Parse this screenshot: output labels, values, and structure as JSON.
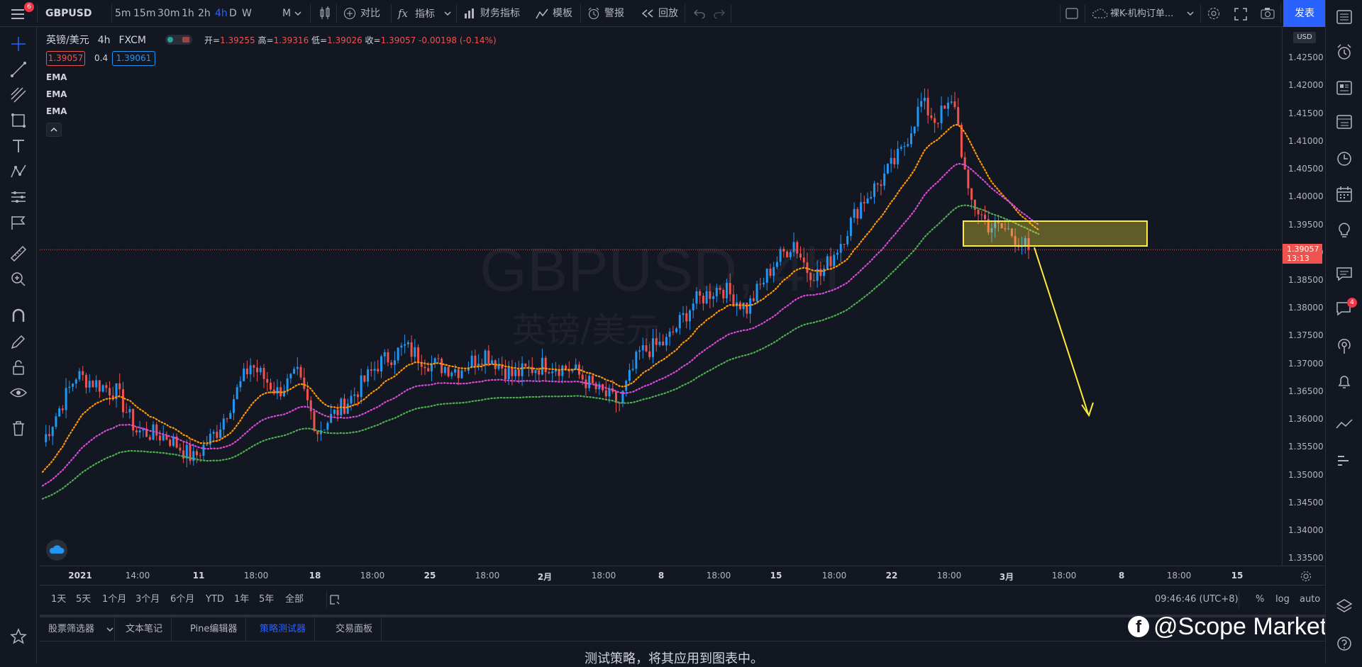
{
  "toolbar": {
    "notification_count": "6",
    "symbol": "GBPUSD",
    "intervals": [
      "5m",
      "15m",
      "30m",
      "1h",
      "2h",
      "4h",
      "D",
      "W",
      "M"
    ],
    "active_interval": "4h",
    "compare_label": "对比",
    "indicators_label": "指标",
    "financials_label": "财务指标",
    "templates_label": "模板",
    "alert_label": "警报",
    "replay_label": "回放",
    "layout_name": "裸K-机构订单...",
    "publish_label": "发表"
  },
  "legend": {
    "title": "英镑/美元",
    "interval": "4h",
    "source": "FXCM",
    "open_label": "开=",
    "open": "1.39255",
    "high_label": "高=",
    "high": "1.39316",
    "low_label": "低=",
    "low": "1.39026",
    "close_label": "收=",
    "close": "1.39057",
    "change": "-0.00198 (-0.14%)",
    "bid": "1.39057",
    "spread": "0.4",
    "ask": "1.39061",
    "indicators": [
      "EMA",
      "EMA",
      "EMA"
    ]
  },
  "watermark": {
    "symbol": "GBPUSD, 4h",
    "name": "英镑/美元"
  },
  "price_axis": {
    "currency": "USD",
    "labels": [
      "1.42500",
      "1.42000",
      "1.41500",
      "1.41000",
      "1.40500",
      "1.40000",
      "1.39500",
      "1.39000",
      "1.38500",
      "1.38000",
      "1.37500",
      "1.37000",
      "1.36500",
      "1.36000",
      "1.35500",
      "1.35000",
      "1.34500",
      "1.34000",
      "1.33500"
    ],
    "last_price": "1.39057",
    "countdown": "13:13",
    "range": [
      1.334,
      1.4306
    ]
  },
  "time_axis": {
    "labels": [
      "2021",
      "14:00",
      "11",
      "18:00",
      "18",
      "18:00",
      "25",
      "18:00",
      "2月",
      "18:00",
      "8",
      "18:00",
      "15",
      "18:00",
      "22",
      "18:00",
      "3月",
      "18:00",
      "8",
      "18:00",
      "15"
    ]
  },
  "range_bar": {
    "ranges": [
      "1天",
      "5天",
      "1个月",
      "3个月",
      "6个月",
      "YTD",
      "1年",
      "5年",
      "全部"
    ],
    "clock": "09:46:46 (UTC+8)",
    "percent": "%",
    "log": "log",
    "auto": "auto"
  },
  "bottom_tabs": {
    "tabs": [
      "股票筛选器",
      "文本笔记",
      "Pine编辑器",
      "策略测试器",
      "交易面板"
    ],
    "active": "策略测试器"
  },
  "bottom_panel": {
    "message": "测试策略，将其应用到图表中。"
  },
  "brand": {
    "text": "@Scope Markets"
  },
  "right_sidebar": {
    "chat_badge": "4"
  },
  "colors": {
    "background": "#131722",
    "up": "#2196f3",
    "down": "#ef5350",
    "ema_fast": "#ff9800",
    "ema_mid": "#d84bd8",
    "ema_slow": "#4caf50",
    "zone": "#ffeb3b",
    "accent": "#2962ff"
  }
}
